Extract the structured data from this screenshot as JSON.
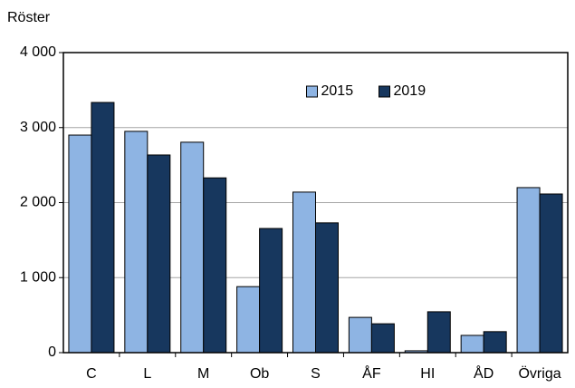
{
  "chart_data": {
    "type": "bar",
    "y_label": "Röster",
    "categories": [
      "C",
      "L",
      "M",
      "Ob",
      "S",
      "ÅF",
      "HI",
      "ÅD",
      "Övriga"
    ],
    "series": [
      {
        "name": "2015",
        "color": "#8eb4e3",
        "values": [
          2900,
          2950,
          2805,
          880,
          2140,
          470,
          25,
          230,
          2200
        ]
      },
      {
        "name": "2019",
        "color": "#17375e",
        "values": [
          3335,
          2635,
          2330,
          1655,
          1730,
          385,
          545,
          280,
          2115
        ]
      }
    ],
    "ylim": [
      0,
      4000
    ],
    "yticks": [
      0,
      {
        "value": 1000,
        "label": "1 000"
      },
      {
        "value": 2000,
        "label": "2 000"
      },
      {
        "value": 3000,
        "label": "3 000"
      },
      {
        "value": 4000,
        "label": "4 000"
      }
    ],
    "grid": true,
    "legend": "top"
  }
}
